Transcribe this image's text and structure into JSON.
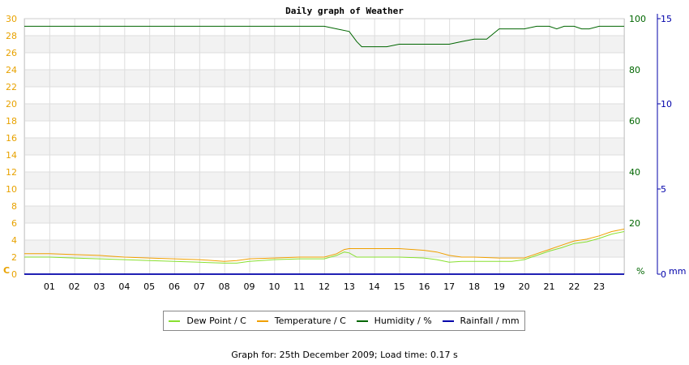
{
  "chart_data": {
    "type": "line",
    "title": "Daily graph of Weather",
    "x_labels": [
      "01",
      "02",
      "03",
      "04",
      "05",
      "06",
      "07",
      "08",
      "09",
      "10",
      "11",
      "12",
      "13",
      "14",
      "15",
      "16",
      "17",
      "18",
      "19",
      "20",
      "21",
      "22",
      "23"
    ],
    "xlim": [
      0,
      24
    ],
    "left_axis": {
      "unit_label": "C",
      "ticks": [
        0,
        2,
        4,
        6,
        8,
        10,
        12,
        14,
        16,
        18,
        20,
        22,
        24,
        26,
        28,
        30
      ],
      "range": [
        0,
        30
      ],
      "color": "#e8a200"
    },
    "right_axis_1": {
      "unit_label": "%",
      "ticks": [
        0,
        20,
        40,
        60,
        80,
        100
      ],
      "range": [
        0,
        100
      ],
      "color": "#006600"
    },
    "right_axis_2": {
      "unit_label": "mm",
      "ticks": [
        0,
        5,
        10,
        15
      ],
      "range": [
        0,
        15
      ],
      "color": "#0000aa"
    },
    "grid": true,
    "legend_position": "bottom",
    "series": [
      {
        "name": "Dew Point / C",
        "axis": "left",
        "color": "#88e030",
        "x": [
          0,
          1,
          2,
          3,
          4,
          5,
          6,
          7,
          8,
          8.5,
          9,
          10,
          11,
          12,
          12.5,
          12.8,
          13,
          13.3,
          14,
          15,
          16,
          16.5,
          17,
          17.5,
          18,
          19,
          19.5,
          20,
          20.5,
          21,
          21.5,
          22,
          22.5,
          23,
          23.5,
          24
        ],
        "y": [
          2.0,
          2.0,
          1.9,
          1.8,
          1.7,
          1.6,
          1.5,
          1.4,
          1.3,
          1.3,
          1.5,
          1.7,
          1.8,
          1.8,
          2.2,
          2.6,
          2.5,
          2.0,
          2.0,
          2.0,
          1.9,
          1.7,
          1.4,
          1.5,
          1.5,
          1.5,
          1.5,
          1.7,
          2.2,
          2.7,
          3.1,
          3.6,
          3.8,
          4.2,
          4.7,
          5.0
        ]
      },
      {
        "name": "Temperature / C",
        "axis": "left",
        "color": "#f0a000",
        "x": [
          0,
          1,
          2,
          3,
          4,
          5,
          6,
          7,
          8,
          8.5,
          9,
          10,
          11,
          12,
          12.5,
          12.8,
          13,
          13.5,
          14,
          15,
          16,
          16.5,
          17,
          17.5,
          18,
          19,
          19.5,
          20,
          20.5,
          21,
          21.5,
          22,
          22.5,
          23,
          23.5,
          24
        ],
        "y": [
          2.4,
          2.4,
          2.3,
          2.2,
          2.0,
          1.9,
          1.8,
          1.7,
          1.5,
          1.6,
          1.8,
          1.9,
          2.0,
          2.0,
          2.4,
          2.9,
          3.0,
          3.0,
          3.0,
          3.0,
          2.8,
          2.6,
          2.2,
          2.0,
          2.0,
          1.9,
          1.9,
          1.9,
          2.4,
          2.9,
          3.4,
          3.9,
          4.1,
          4.5,
          5.0,
          5.3
        ]
      },
      {
        "name": "Humidity / %",
        "axis": "right_1",
        "color": "#006600",
        "x": [
          0,
          12,
          12.5,
          13,
          13.3,
          13.5,
          14,
          14.5,
          15,
          15.5,
          16,
          17,
          17.5,
          18,
          18.5,
          19,
          20,
          20.5,
          21,
          21.3,
          21.6,
          22,
          22.3,
          22.6,
          23,
          24
        ],
        "y": [
          97,
          97,
          96,
          95,
          91,
          89,
          89,
          89,
          90,
          90,
          90,
          90,
          91,
          92,
          92,
          96,
          96,
          97,
          97,
          96,
          97,
          97,
          96,
          96,
          97,
          97
        ]
      },
      {
        "name": "Rainfall / mm",
        "axis": "right_2",
        "color": "#0000aa",
        "x": [
          0,
          24
        ],
        "y": [
          0,
          0
        ]
      }
    ]
  },
  "footer": {
    "text": "Graph for: 25th December 2009; Load time: 0.17 s"
  }
}
